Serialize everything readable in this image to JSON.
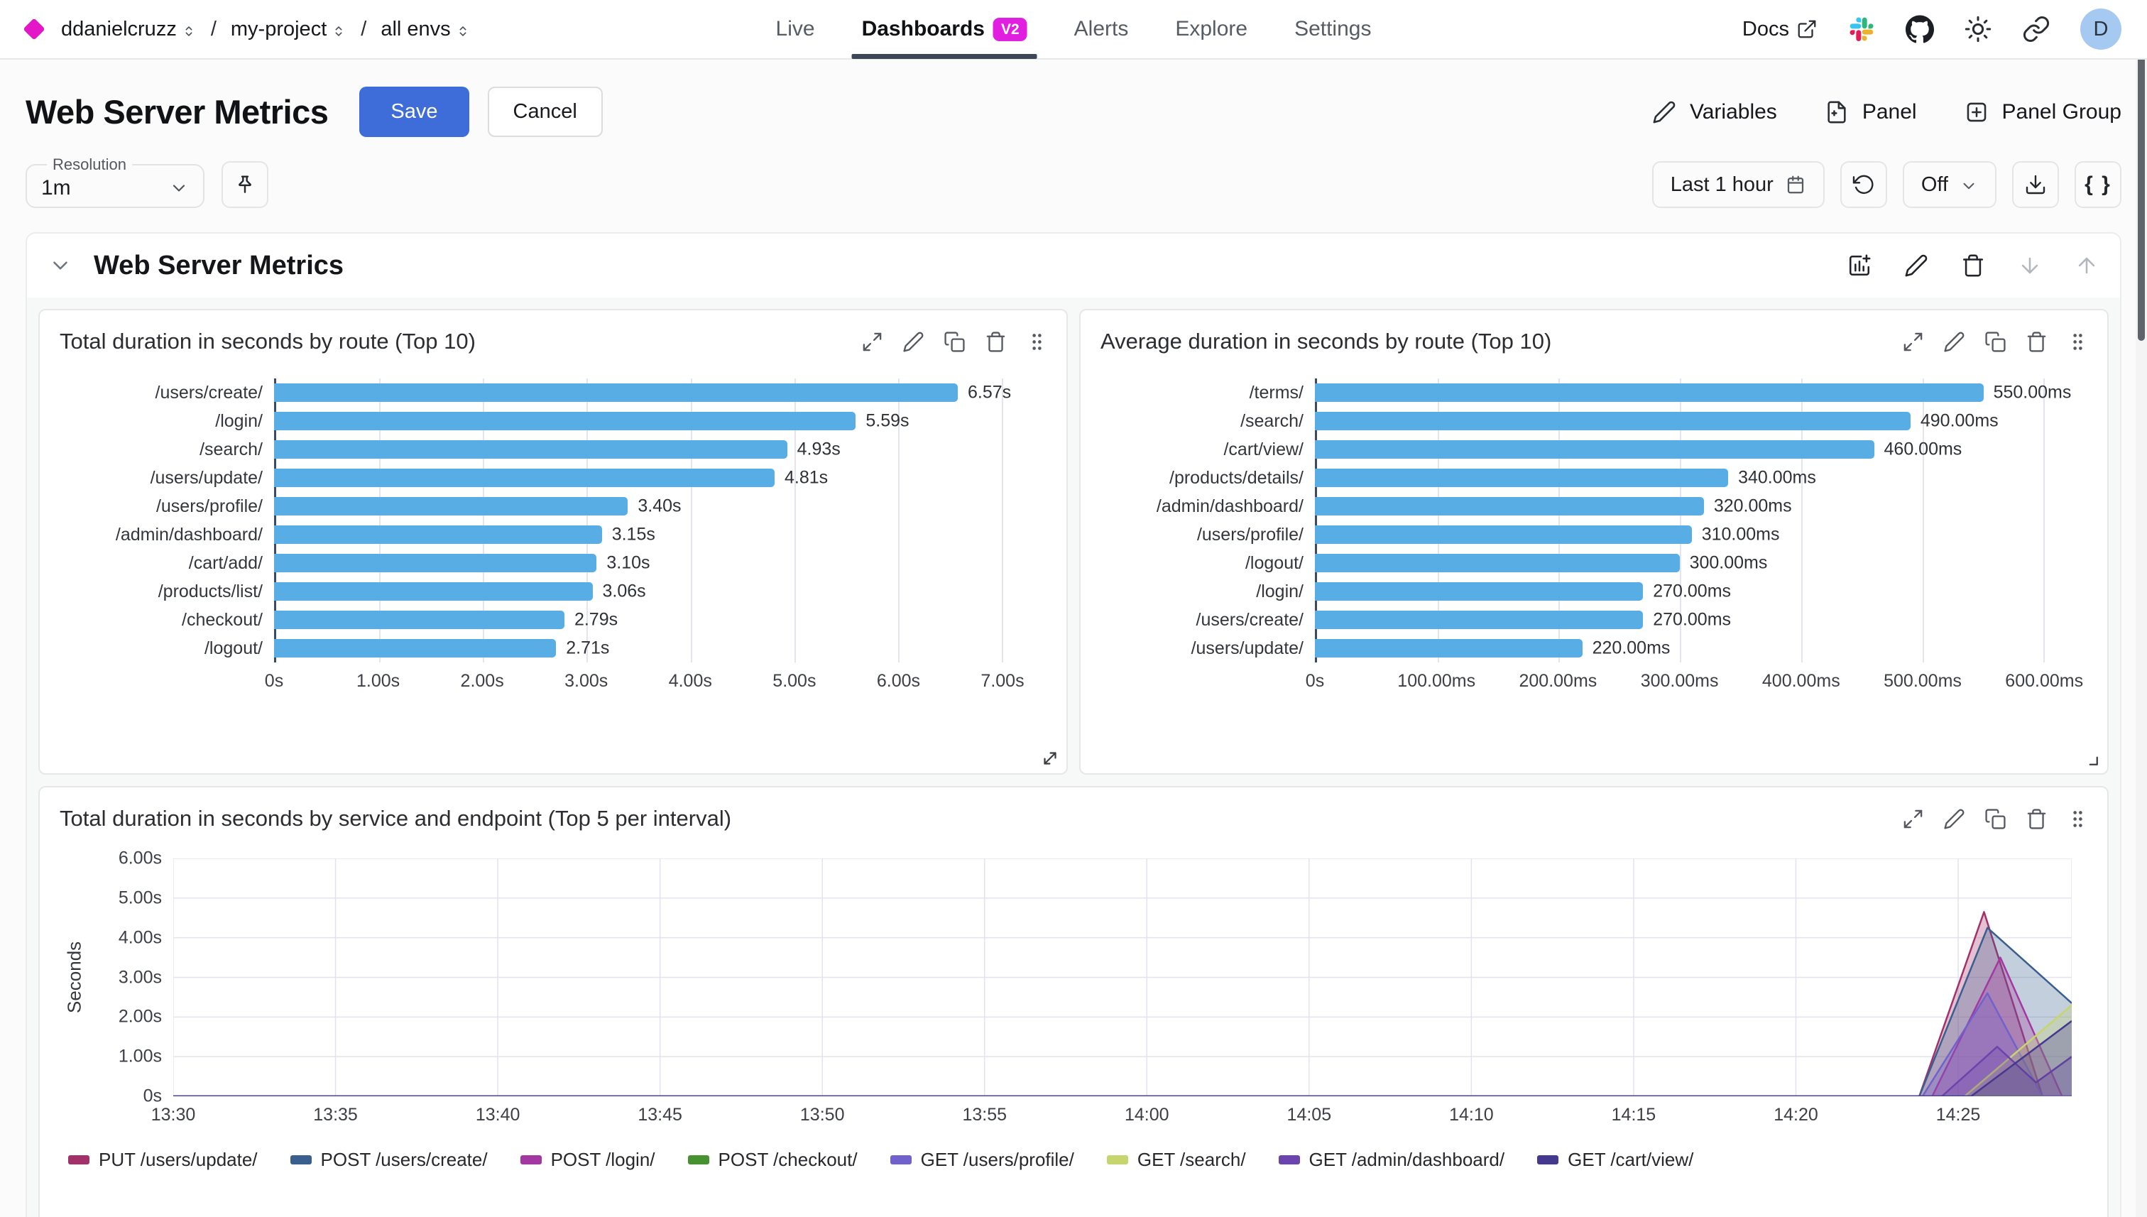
{
  "nav": {
    "separator": "/",
    "breadcrumb": [
      {
        "label": "ddanielcruzz"
      },
      {
        "label": "my-project"
      },
      {
        "label": "all envs"
      }
    ],
    "tabs": [
      {
        "label": "Live"
      },
      {
        "label": "Dashboards",
        "badge": "V2"
      },
      {
        "label": "Alerts"
      },
      {
        "label": "Explore"
      },
      {
        "label": "Settings"
      }
    ],
    "docs_label": "Docs",
    "avatar_initial": "D"
  },
  "header": {
    "title": "Web Server Metrics",
    "save": "Save",
    "cancel": "Cancel",
    "variables": "Variables",
    "panel": "Panel",
    "panel_group": "Panel Group"
  },
  "toolbar": {
    "resolution_label": "Resolution",
    "resolution_value": "1m",
    "time_range": "Last 1 hour",
    "auto_refresh": "Off",
    "braces": "{ }"
  },
  "section": {
    "title": "Web Server Metrics"
  },
  "colors": {
    "accent_blue": "#3e6cd8",
    "badge_magenta": "#e11fe1",
    "logo_magenta": "#e316c8",
    "bar_blue": "#58ade4"
  },
  "chart_data": [
    {
      "type": "bar",
      "orientation": "horizontal",
      "title": "Total duration in seconds by route (Top 10)",
      "categories": [
        "/users/create/",
        "/login/",
        "/search/",
        "/users/update/",
        "/users/profile/",
        "/admin/dashboard/",
        "/cart/add/",
        "/products/list/",
        "/checkout/",
        "/logout/"
      ],
      "values": [
        6.57,
        5.59,
        4.93,
        4.81,
        3.4,
        3.15,
        3.1,
        3.06,
        2.79,
        2.71
      ],
      "value_labels": [
        "6.57s",
        "5.59s",
        "4.93s",
        "4.81s",
        "3.40s",
        "3.15s",
        "3.10s",
        "3.06s",
        "2.79s",
        "2.71s"
      ],
      "x_max": 7.3,
      "x_ticks": [
        {
          "label": "0s",
          "value": 0
        },
        {
          "label": "1.00s",
          "value": 1
        },
        {
          "label": "2.00s",
          "value": 2
        },
        {
          "label": "3.00s",
          "value": 3
        },
        {
          "label": "4.00s",
          "value": 4
        },
        {
          "label": "5.00s",
          "value": 5
        },
        {
          "label": "6.00s",
          "value": 6
        },
        {
          "label": "7.00s",
          "value": 7
        }
      ],
      "bar_color": "#58ade4"
    },
    {
      "type": "bar",
      "orientation": "horizontal",
      "title": "Average duration in seconds by route (Top 10)",
      "categories": [
        "/terms/",
        "/search/",
        "/cart/view/",
        "/products/details/",
        "/admin/dashboard/",
        "/users/profile/",
        "/logout/",
        "/login/",
        "/users/create/",
        "/users/update/"
      ],
      "values": [
        550,
        490,
        460,
        340,
        320,
        310,
        300,
        270,
        270,
        220
      ],
      "value_labels": [
        "550.00ms",
        "490.00ms",
        "460.00ms",
        "340.00ms",
        "320.00ms",
        "310.00ms",
        "300.00ms",
        "270.00ms",
        "270.00ms",
        "220.00ms"
      ],
      "x_max": 625,
      "x_ticks": [
        {
          "label": "0s",
          "value": 0
        },
        {
          "label": "100.00ms",
          "value": 100
        },
        {
          "label": "200.00ms",
          "value": 200
        },
        {
          "label": "300.00ms",
          "value": 300
        },
        {
          "label": "400.00ms",
          "value": 400
        },
        {
          "label": "500.00ms",
          "value": 500
        },
        {
          "label": "600.00ms",
          "value": 600
        }
      ],
      "bar_color": "#58ade4"
    },
    {
      "type": "area",
      "title": "Total duration in seconds by service and endpoint (Top 5 per interval)",
      "ylabel": "Seconds",
      "y_max": 6,
      "y_ticks": [
        {
          "label": "0s",
          "value": 0
        },
        {
          "label": "1.00s",
          "value": 1
        },
        {
          "label": "2.00s",
          "value": 2
        },
        {
          "label": "3.00s",
          "value": 3
        },
        {
          "label": "4.00s",
          "value": 4
        },
        {
          "label": "5.00s",
          "value": 5
        },
        {
          "label": "6.00s",
          "value": 6
        }
      ],
      "x_span_minutes": 58.5,
      "x_start": "13:30",
      "x_ticks": [
        {
          "label": "13:30",
          "minute": 0
        },
        {
          "label": "13:35",
          "minute": 5
        },
        {
          "label": "13:40",
          "minute": 10
        },
        {
          "label": "13:45",
          "minute": 15
        },
        {
          "label": "13:50",
          "minute": 20
        },
        {
          "label": "13:55",
          "minute": 25
        },
        {
          "label": "14:00",
          "minute": 30
        },
        {
          "label": "14:05",
          "minute": 35
        },
        {
          "label": "14:10",
          "minute": 40
        },
        {
          "label": "14:15",
          "minute": 45
        },
        {
          "label": "14:20",
          "minute": 50
        },
        {
          "label": "14:25",
          "minute": 55
        }
      ],
      "series": [
        {
          "name": "PUT /users/update/",
          "color": "#a33169",
          "points": [
            [
              0,
              0
            ],
            [
              53.8,
              0
            ],
            [
              55.8,
              4.65
            ],
            [
              57.6,
              0
            ],
            [
              58.5,
              0
            ]
          ]
        },
        {
          "name": "POST /users/create/",
          "color": "#3a5f8f",
          "points": [
            [
              0,
              0
            ],
            [
              53.8,
              0
            ],
            [
              55.9,
              4.25
            ],
            [
              58.5,
              2.35
            ]
          ]
        },
        {
          "name": "POST /login/",
          "color": "#a238a0",
          "points": [
            [
              0,
              0
            ],
            [
              54.2,
              0
            ],
            [
              56.3,
              3.5
            ],
            [
              58.2,
              0
            ],
            [
              58.5,
              0
            ]
          ]
        },
        {
          "name": "POST /checkout/",
          "color": "#469230",
          "points": [
            [
              0,
              0
            ],
            [
              58.5,
              0
            ]
          ]
        },
        {
          "name": "GET /users/profile/",
          "color": "#7161cb",
          "points": [
            [
              0,
              0
            ],
            [
              53.9,
              0
            ],
            [
              55.9,
              2.6
            ],
            [
              57.6,
              0
            ],
            [
              58.5,
              0
            ]
          ]
        },
        {
          "name": "GET /search/",
          "color": "#c7d56f",
          "points": [
            [
              0,
              0
            ],
            [
              55.2,
              0
            ],
            [
              58.5,
              2.3
            ]
          ]
        },
        {
          "name": "GET /admin/dashboard/",
          "color": "#6c44ad",
          "points": [
            [
              0,
              0
            ],
            [
              54.5,
              0
            ],
            [
              56.2,
              1.25
            ],
            [
              57.4,
              0.35
            ],
            [
              58.5,
              1.0
            ]
          ]
        },
        {
          "name": "GET /cart/view/",
          "color": "#45398f",
          "points": [
            [
              0,
              0
            ],
            [
              55.4,
              0
            ],
            [
              58.5,
              1.9
            ]
          ]
        }
      ]
    }
  ]
}
